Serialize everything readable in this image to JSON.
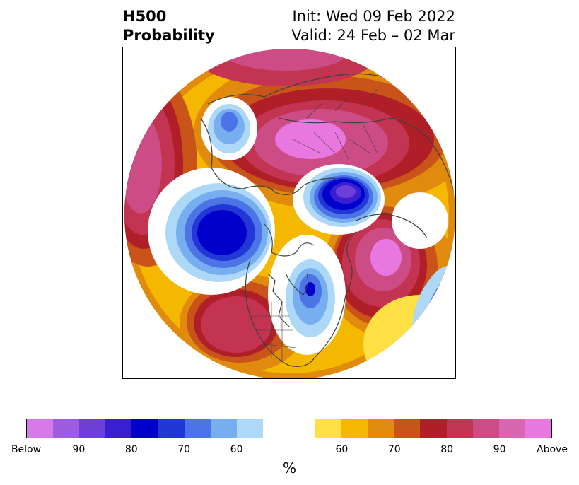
{
  "title": {
    "left_line1": "H500",
    "left_line2": "Probability",
    "right_line1": "Init: Wed 09 Feb 2022",
    "right_line2": "Valid: 24 Feb – 02 Mar"
  },
  "colorbar": {
    "colors": [
      "#d67ae8",
      "#9e5ce0",
      "#6e3ed8",
      "#3a1fd2",
      "#0000cc",
      "#2238d6",
      "#4c74e6",
      "#76aef0",
      "#aed8f8",
      "#ffffff",
      "#ffffff",
      "#fee044",
      "#f5b800",
      "#e08a0e",
      "#c8541a",
      "#b01f28",
      "#c23452",
      "#cc4c86",
      "#d866b0",
      "#e878e0"
    ],
    "labels": [
      "Below",
      "90",
      "80",
      "70",
      "60",
      "",
      "60",
      "70",
      "80",
      "90",
      "Above"
    ],
    "unit": "%"
  },
  "map": {
    "projection": "north polar stereographic",
    "coastline_color": "#404040"
  }
}
